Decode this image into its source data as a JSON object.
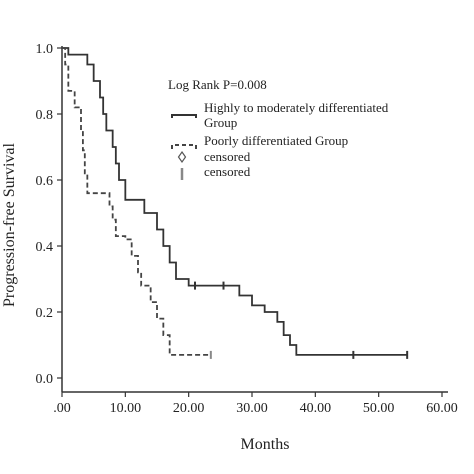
{
  "chart_data": {
    "type": "line",
    "xlabel": "Months",
    "ylabel": "Progression-free Survival",
    "xlim": [
      0,
      60
    ],
    "ylim": [
      0,
      1.0
    ],
    "x_ticks": [
      0,
      10,
      20,
      30,
      40,
      50,
      60
    ],
    "x_tick_labels": [
      ".00",
      "10.00",
      "20.00",
      "30.00",
      "40.00",
      "50.00",
      "60.00"
    ],
    "y_ticks": [
      0,
      0.2,
      0.4,
      0.6,
      0.8,
      1.0
    ],
    "y_tick_labels": [
      "0.0",
      "0.2",
      "0.4",
      "0.6",
      "0.8",
      "1.0"
    ],
    "annotation": "Log Rank P=0.008",
    "grid": false,
    "legend_position": "top-right",
    "legend": [
      {
        "label": "Highly to moderately differentiated",
        "label2": "Group",
        "style": "solid"
      },
      {
        "label": "Poorly differentiated Group",
        "style": "dashed"
      },
      {
        "label": "censored",
        "style": "diamond-marker"
      },
      {
        "label": "censored",
        "style": "tick-marker"
      }
    ],
    "series": [
      {
        "style": "solid",
        "color": "#333333",
        "steps": [
          [
            0,
            1.0
          ],
          [
            1,
            0.98
          ],
          [
            4,
            0.95
          ],
          [
            5,
            0.9
          ],
          [
            6,
            0.85
          ],
          [
            6.5,
            0.8
          ],
          [
            7,
            0.75
          ],
          [
            8,
            0.7
          ],
          [
            8.5,
            0.65
          ],
          [
            9,
            0.6
          ],
          [
            10,
            0.54
          ],
          [
            13,
            0.5
          ],
          [
            15,
            0.45
          ],
          [
            16,
            0.4
          ],
          [
            17,
            0.35
          ],
          [
            18,
            0.3
          ],
          [
            20,
            0.28
          ],
          [
            28,
            0.25
          ],
          [
            30,
            0.22
          ],
          [
            32,
            0.2
          ],
          [
            34,
            0.17
          ],
          [
            35,
            0.13
          ],
          [
            36,
            0.1
          ],
          [
            37,
            0.07
          ],
          [
            54.5,
            0.07
          ]
        ],
        "censored": [
          [
            21,
            0.28
          ],
          [
            25.5,
            0.28
          ],
          [
            46,
            0.07
          ],
          [
            54.5,
            0.07
          ]
        ]
      },
      {
        "style": "dashed",
        "color": "#444444",
        "steps": [
          [
            0,
            1.0
          ],
          [
            0.5,
            0.95
          ],
          [
            1,
            0.87
          ],
          [
            2,
            0.82
          ],
          [
            3,
            0.75
          ],
          [
            3.3,
            0.69
          ],
          [
            3.6,
            0.62
          ],
          [
            4,
            0.56
          ],
          [
            7.5,
            0.52
          ],
          [
            8,
            0.48
          ],
          [
            8.5,
            0.43
          ],
          [
            10,
            0.42
          ],
          [
            11,
            0.37
          ],
          [
            12,
            0.32
          ],
          [
            12.5,
            0.28
          ],
          [
            14,
            0.23
          ],
          [
            15,
            0.18
          ],
          [
            16,
            0.13
          ],
          [
            17,
            0.07
          ],
          [
            23.5,
            0.07
          ]
        ],
        "censored": [
          [
            23.5,
            0.07
          ]
        ]
      }
    ]
  }
}
